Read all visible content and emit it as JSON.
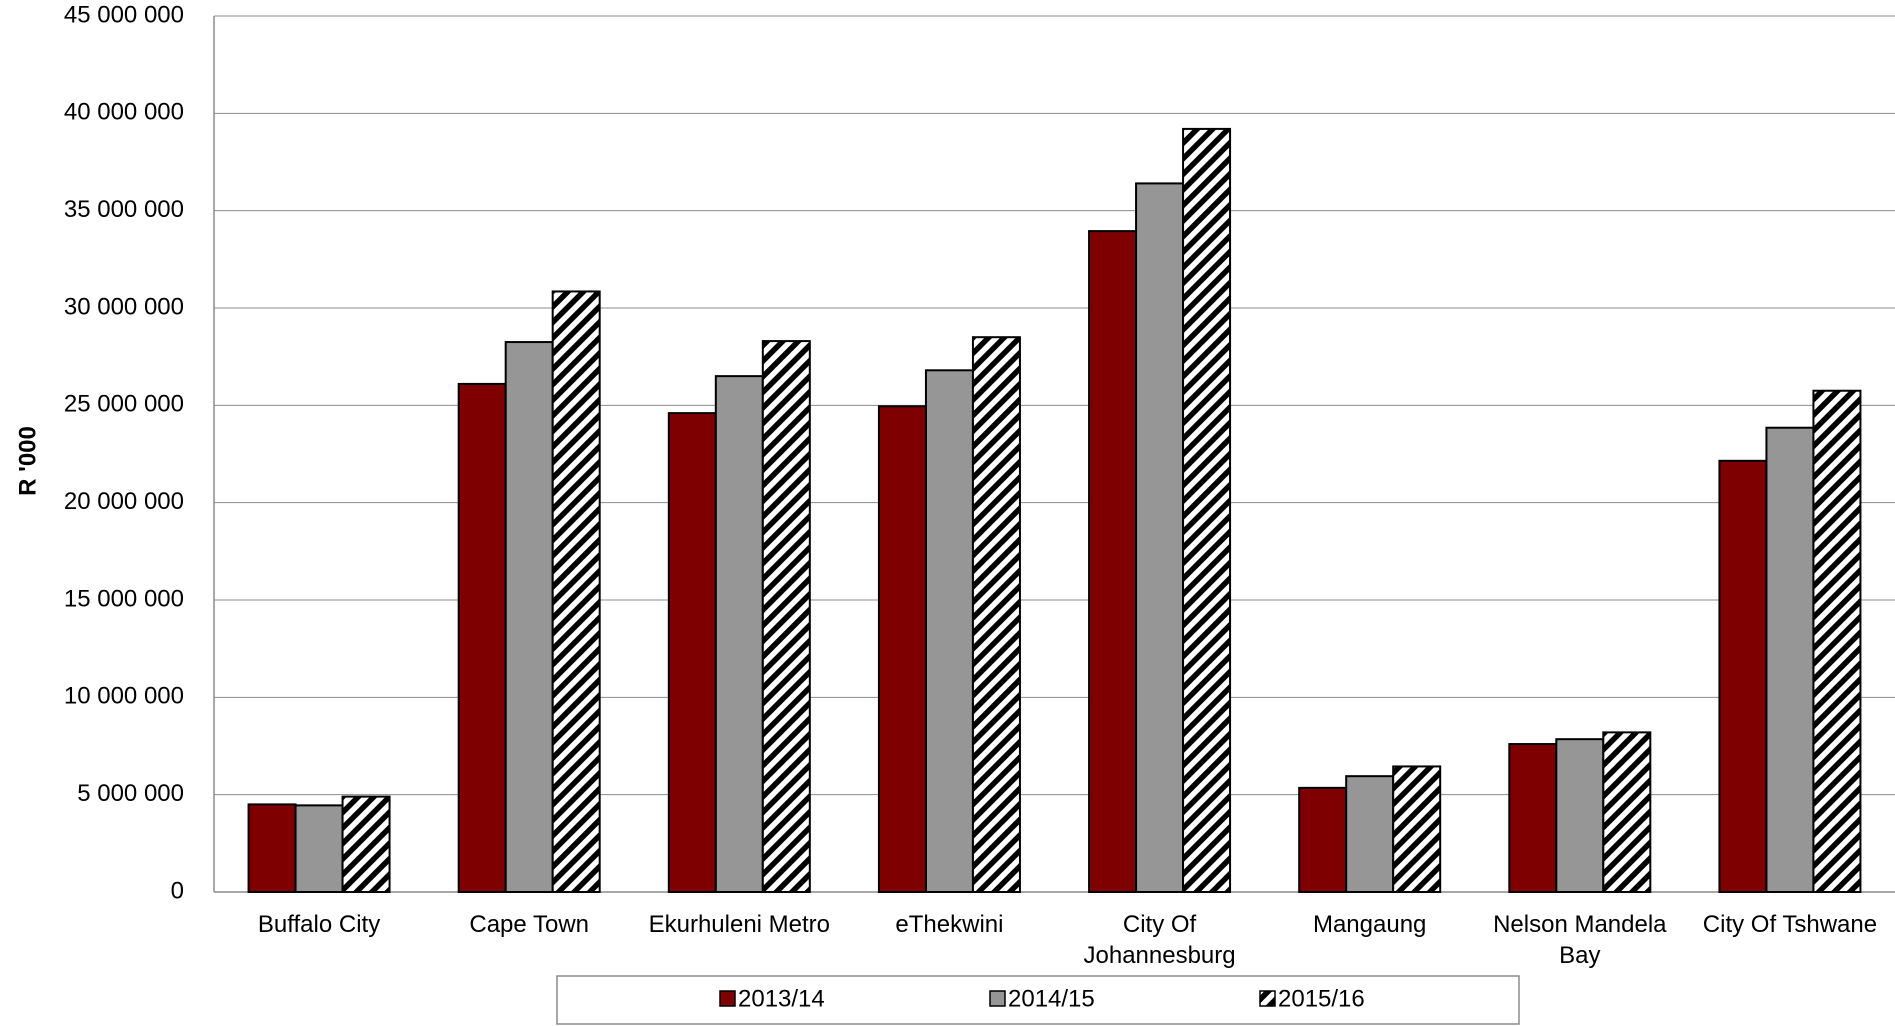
{
  "chart_data": {
    "type": "bar",
    "ylabel": "R '000",
    "ylim": [
      0,
      45000000
    ],
    "yticks": [
      0,
      5000000,
      10000000,
      15000000,
      20000000,
      25000000,
      30000000,
      35000000,
      40000000,
      45000000
    ],
    "ytick_labels": [
      "0",
      "5 000 000",
      "10 000 000",
      "15 000 000",
      "20 000 000",
      "25 000 000",
      "30 000 000",
      "35 000 000",
      "40 000 000",
      "45 000 000"
    ],
    "grid": true,
    "legend_position": "bottom",
    "categories": [
      [
        "Buffalo City"
      ],
      [
        "Cape Town"
      ],
      [
        "Ekurhuleni Metro"
      ],
      [
        "eThekwini"
      ],
      [
        "City Of",
        "Johannesburg"
      ],
      [
        "Mangaung"
      ],
      [
        "Nelson Mandela",
        "Bay"
      ],
      [
        "City Of Tshwane"
      ]
    ],
    "series": [
      {
        "name": "2013/14",
        "color": "#7f0000",
        "fill": "solid",
        "values": [
          4500000,
          26100000,
          24600000,
          24950000,
          33950000,
          5350000,
          7600000,
          22150000
        ]
      },
      {
        "name": "2014/15",
        "color": "#969696",
        "fill": "solid",
        "values": [
          4450000,
          28250000,
          26500000,
          26800000,
          36400000,
          5950000,
          7850000,
          23850000
        ]
      },
      {
        "name": "2015/16",
        "color": "#ffffff",
        "fill": "diagonal-hatch",
        "values": [
          4900000,
          30850000,
          28300000,
          28500000,
          39200000,
          6450000,
          8200000,
          25750000
        ]
      }
    ]
  }
}
